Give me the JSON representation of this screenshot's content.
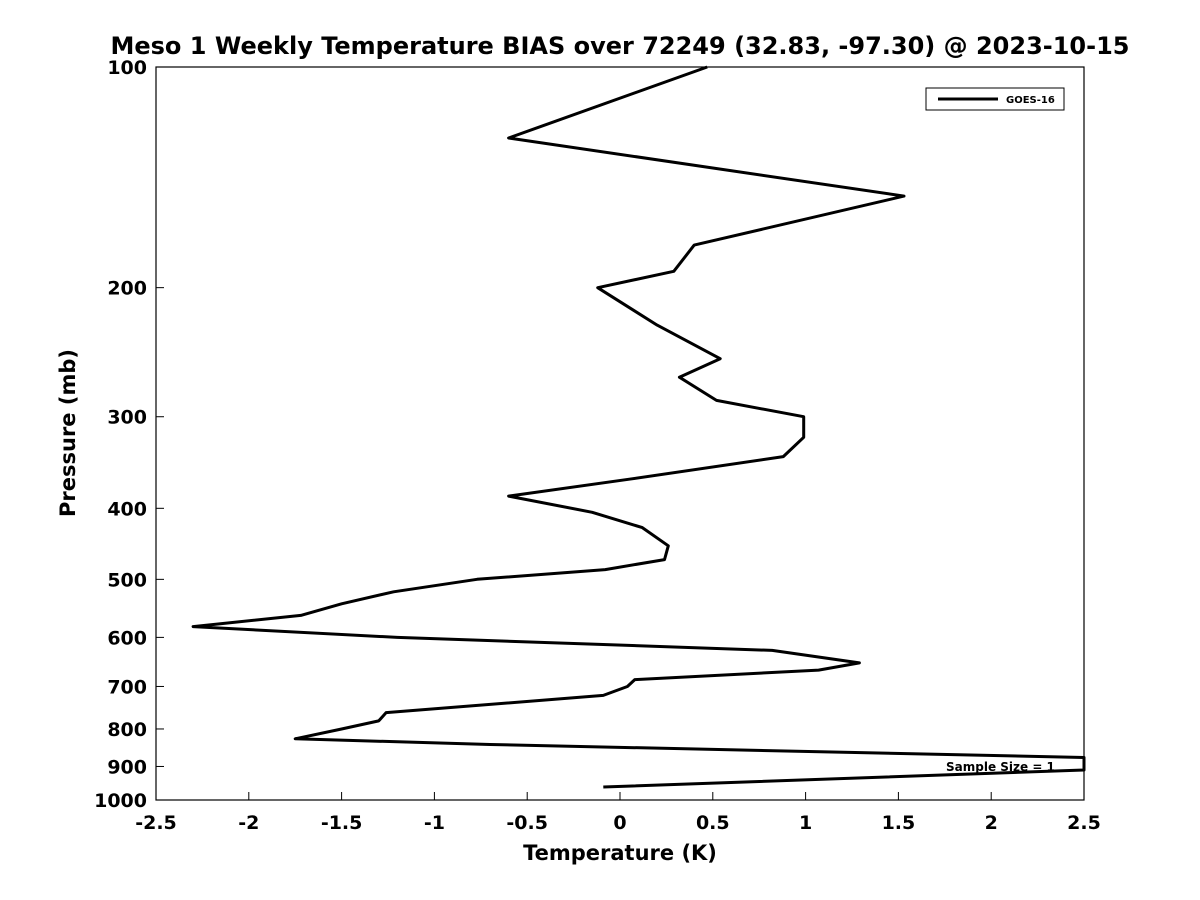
{
  "chart_data": {
    "type": "line",
    "title": "Meso 1 Weekly Temperature BIAS over 72249 (32.83, -97.30) @ 2023-10-15",
    "xlabel": "Temperature (K)",
    "ylabel": "Pressure (mb)",
    "xlim": [
      -2.5,
      2.5
    ],
    "ylim": [
      100,
      1000
    ],
    "y_scale": "log",
    "y_reversed": true,
    "x_ticks": [
      "-2.5",
      "-2",
      "-1.5",
      "-1",
      "-0.5",
      "0",
      "0.5",
      "1",
      "1.5",
      "2",
      "2.5"
    ],
    "y_ticks": [
      "100",
      "200",
      "300",
      "400",
      "500",
      "600",
      "700",
      "800",
      "900",
      "1000"
    ],
    "grid": false,
    "legend_position": "top-right",
    "annotation": "Sample Size = 1",
    "series": [
      {
        "name": "GOES-16",
        "color": "#000000",
        "points": [
          {
            "x": 0.47,
            "p": 100
          },
          {
            "x": -0.6,
            "p": 125
          },
          {
            "x": 1.53,
            "p": 150
          },
          {
            "x": 0.4,
            "p": 175
          },
          {
            "x": 0.29,
            "p": 190
          },
          {
            "x": -0.12,
            "p": 200
          },
          {
            "x": 0.2,
            "p": 225
          },
          {
            "x": 0.54,
            "p": 250
          },
          {
            "x": 0.32,
            "p": 265
          },
          {
            "x": 0.52,
            "p": 285
          },
          {
            "x": 0.99,
            "p": 300
          },
          {
            "x": 0.99,
            "p": 320
          },
          {
            "x": 0.88,
            "p": 340
          },
          {
            "x": 0.05,
            "p": 365
          },
          {
            "x": -0.6,
            "p": 385
          },
          {
            "x": -0.15,
            "p": 405
          },
          {
            "x": 0.12,
            "p": 425
          },
          {
            "x": 0.26,
            "p": 450
          },
          {
            "x": 0.24,
            "p": 470
          },
          {
            "x": -0.08,
            "p": 485
          },
          {
            "x": -0.77,
            "p": 500
          },
          {
            "x": -1.22,
            "p": 520
          },
          {
            "x": -1.5,
            "p": 540
          },
          {
            "x": -1.72,
            "p": 560
          },
          {
            "x": -2.3,
            "p": 580
          },
          {
            "x": -1.2,
            "p": 600
          },
          {
            "x": 0.82,
            "p": 625
          },
          {
            "x": 1.29,
            "p": 650
          },
          {
            "x": 1.07,
            "p": 665
          },
          {
            "x": 0.08,
            "p": 685
          },
          {
            "x": 0.04,
            "p": 700
          },
          {
            "x": -0.09,
            "p": 720
          },
          {
            "x": -1.26,
            "p": 760
          },
          {
            "x": -1.3,
            "p": 780
          },
          {
            "x": -1.5,
            "p": 800
          },
          {
            "x": -1.75,
            "p": 825
          },
          {
            "x": -0.7,
            "p": 840
          },
          {
            "x": 2.5,
            "p": 875
          },
          {
            "x": 2.5,
            "p": 910
          },
          {
            "x": -0.09,
            "p": 960
          }
        ]
      }
    ]
  }
}
